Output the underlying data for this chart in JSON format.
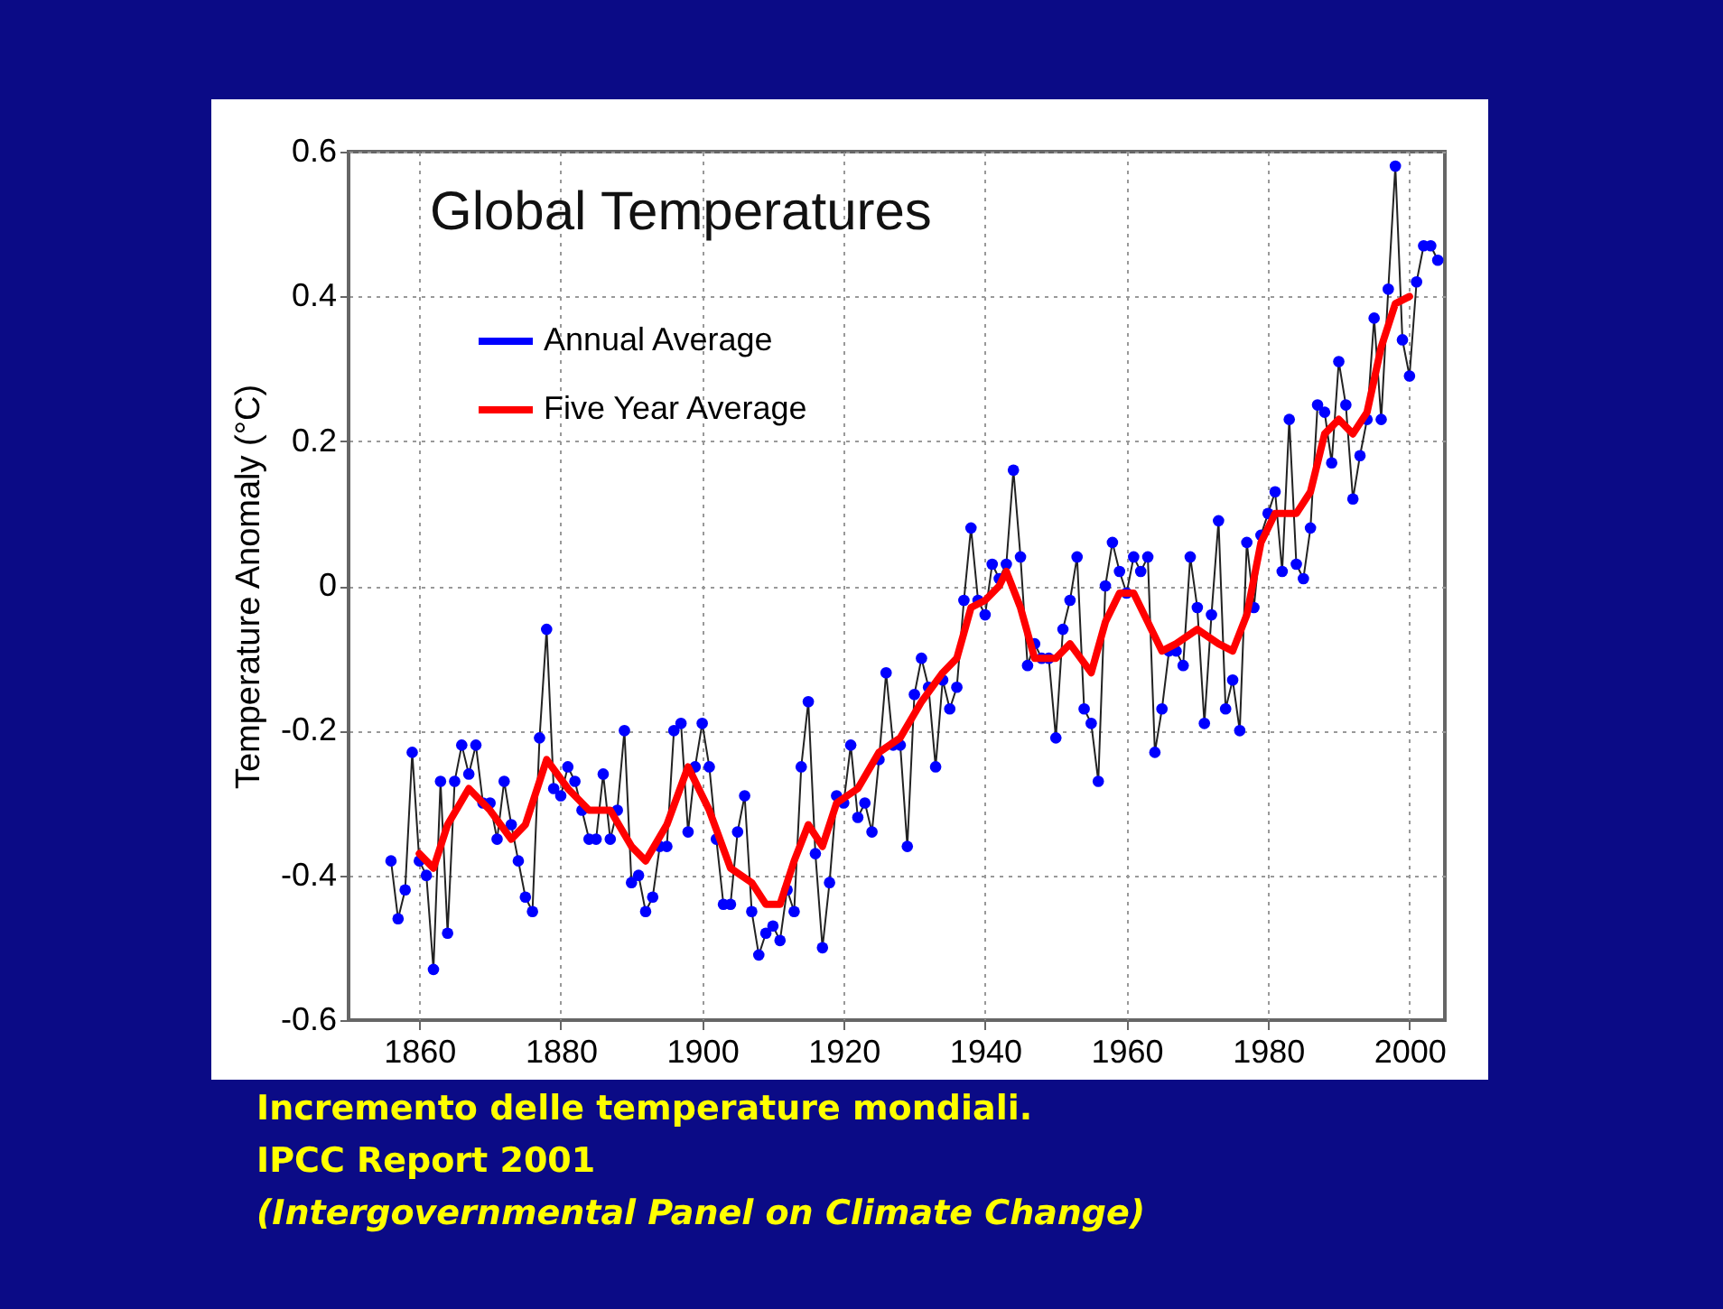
{
  "chart_data": {
    "type": "line",
    "title": "Global Temperatures",
    "ylabel": "Temperature Anomaly (°C)",
    "xlim": [
      1850,
      2005
    ],
    "xticks": [
      1860,
      1880,
      1900,
      1920,
      1940,
      1960,
      1980,
      2000
    ],
    "ylim": [
      -0.6,
      0.6
    ],
    "yticks": [
      -0.6,
      -0.4,
      -0.2,
      0,
      0.2,
      0.4,
      0.6
    ],
    "grid": true,
    "legend": "top left",
    "series": [
      {
        "name": "Annual Average",
        "color": "#0000ff",
        "marker": "circle",
        "x": [
          1856,
          1857,
          1858,
          1859,
          1860,
          1861,
          1862,
          1863,
          1864,
          1865,
          1866,
          1867,
          1868,
          1869,
          1870,
          1871,
          1872,
          1873,
          1874,
          1875,
          1876,
          1877,
          1878,
          1879,
          1880,
          1881,
          1882,
          1883,
          1884,
          1885,
          1886,
          1887,
          1888,
          1889,
          1890,
          1891,
          1892,
          1893,
          1894,
          1895,
          1896,
          1897,
          1898,
          1899,
          1900,
          1901,
          1902,
          1903,
          1904,
          1905,
          1906,
          1907,
          1908,
          1909,
          1910,
          1911,
          1912,
          1913,
          1914,
          1915,
          1916,
          1917,
          1918,
          1919,
          1920,
          1921,
          1922,
          1923,
          1924,
          1925,
          1926,
          1927,
          1928,
          1929,
          1930,
          1931,
          1932,
          1933,
          1934,
          1935,
          1936,
          1937,
          1938,
          1939,
          1940,
          1941,
          1942,
          1943,
          1944,
          1945,
          1946,
          1947,
          1948,
          1949,
          1950,
          1951,
          1952,
          1953,
          1954,
          1955,
          1956,
          1957,
          1958,
          1959,
          1960,
          1961,
          1962,
          1963,
          1964,
          1965,
          1966,
          1967,
          1968,
          1969,
          1970,
          1971,
          1972,
          1973,
          1974,
          1975,
          1976,
          1977,
          1978,
          1979,
          1980,
          1981,
          1982,
          1983,
          1984,
          1985,
          1986,
          1987,
          1988,
          1989,
          1990,
          1991,
          1992,
          1993,
          1994,
          1995,
          1996,
          1997,
          1998,
          1999,
          2000,
          2001,
          2002,
          2003,
          2004
        ],
        "values": [
          -0.38,
          -0.46,
          -0.42,
          -0.23,
          -0.38,
          -0.4,
          -0.53,
          -0.27,
          -0.48,
          -0.27,
          -0.22,
          -0.26,
          -0.22,
          -0.3,
          -0.3,
          -0.35,
          -0.27,
          -0.33,
          -0.38,
          -0.43,
          -0.45,
          -0.21,
          -0.06,
          -0.28,
          -0.29,
          -0.25,
          -0.27,
          -0.31,
          -0.35,
          -0.35,
          -0.26,
          -0.35,
          -0.31,
          -0.2,
          -0.41,
          -0.4,
          -0.45,
          -0.43,
          -0.36,
          -0.36,
          -0.2,
          -0.19,
          -0.34,
          -0.25,
          -0.19,
          -0.25,
          -0.35,
          -0.44,
          -0.44,
          -0.34,
          -0.29,
          -0.45,
          -0.51,
          -0.48,
          -0.47,
          -0.49,
          -0.42,
          -0.45,
          -0.25,
          -0.16,
          -0.37,
          -0.5,
          -0.41,
          -0.29,
          -0.3,
          -0.22,
          -0.32,
          -0.3,
          -0.34,
          -0.24,
          -0.12,
          -0.22,
          -0.22,
          -0.36,
          -0.15,
          -0.1,
          -0.14,
          -0.25,
          -0.13,
          -0.17,
          -0.14,
          -0.02,
          0.08,
          -0.02,
          -0.04,
          0.03,
          0.01,
          0.03,
          0.16,
          0.04,
          -0.11,
          -0.08,
          -0.1,
          -0.1,
          -0.21,
          -0.06,
          -0.02,
          0.04,
          -0.17,
          -0.19,
          -0.27,
          0,
          0.06,
          0.02,
          -0.01,
          0.04,
          0.02,
          0.04,
          -0.23,
          -0.17,
          -0.09,
          -0.09,
          -0.11,
          0.04,
          -0.03,
          -0.19,
          -0.04,
          0.09,
          -0.17,
          -0.13,
          -0.2,
          0.06,
          -0.03,
          0.07,
          0.1,
          0.13,
          0.02,
          0.23,
          0.03,
          0.01,
          0.08,
          0.25,
          0.24,
          0.17,
          0.31,
          0.25,
          0.12,
          0.18,
          0.23,
          0.37,
          0.23,
          0.41,
          0.58,
          0.34,
          0.29,
          0.42,
          0.47,
          0.47,
          0.45
        ]
      },
      {
        "name": "Five Year Average",
        "color": "#ff0000",
        "marker": "none",
        "x": [
          1860,
          1862,
          1864,
          1867,
          1870,
          1873,
          1875,
          1878,
          1881,
          1884,
          1887,
          1890,
          1892,
          1895,
          1898,
          1901,
          1904,
          1907,
          1909,
          1911,
          1913,
          1915,
          1917,
          1919,
          1922,
          1925,
          1928,
          1931,
          1934,
          1936,
          1938,
          1940,
          1942,
          1943,
          1945,
          1947,
          1950,
          1952,
          1955,
          1957,
          1959,
          1961,
          1963,
          1965,
          1967,
          1970,
          1973,
          1975,
          1977,
          1979,
          1981,
          1984,
          1986,
          1988,
          1990,
          1992,
          1994,
          1996,
          1998,
          2000
        ],
        "values": [
          -0.37,
          -0.39,
          -0.33,
          -0.28,
          -0.31,
          -0.35,
          -0.33,
          -0.24,
          -0.28,
          -0.31,
          -0.31,
          -0.36,
          -0.38,
          -0.33,
          -0.25,
          -0.31,
          -0.39,
          -0.41,
          -0.44,
          -0.44,
          -0.38,
          -0.33,
          -0.36,
          -0.3,
          -0.28,
          -0.23,
          -0.21,
          -0.16,
          -0.12,
          -0.1,
          -0.03,
          -0.02,
          0,
          0.02,
          -0.03,
          -0.1,
          -0.1,
          -0.08,
          -0.12,
          -0.05,
          -0.01,
          -0.01,
          -0.05,
          -0.09,
          -0.08,
          -0.06,
          -0.08,
          -0.09,
          -0.04,
          0.06,
          0.1,
          0.1,
          0.13,
          0.21,
          0.23,
          0.21,
          0.24,
          0.33,
          0.39,
          0.4
        ]
      }
    ],
    "annotations": [
      "Incremento delle temperature mondiali.",
      "IPCC Report 2001",
      "(Intergovernmental Panel on Climate Change)"
    ]
  }
}
